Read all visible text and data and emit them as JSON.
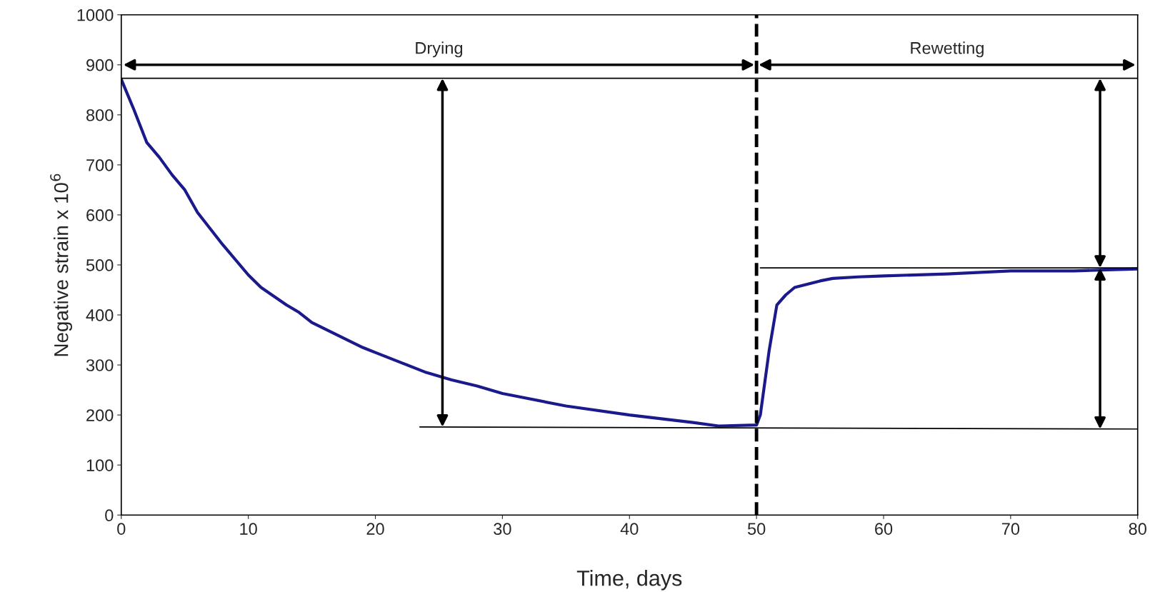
{
  "chart_data": {
    "type": "line",
    "xlabel": "Time, days",
    "ylabel": "Negative strain x 10$^{6}$",
    "xlim": [
      0,
      80
    ],
    "ylim": [
      0,
      1000
    ],
    "xticks": [
      0,
      10,
      20,
      30,
      40,
      50,
      60,
      70,
      80
    ],
    "yticks": [
      0,
      100,
      200,
      300,
      400,
      500,
      600,
      700,
      800,
      900,
      1000
    ],
    "grid": false,
    "legend": false,
    "marker": "none",
    "annotations": [
      "Drying",
      "Rewetting"
    ],
    "ref_lines": [
      {
        "axis": "x",
        "value": 50,
        "color": "#000000",
        "line_style": "dashed"
      },
      {
        "axis": "y",
        "value": 873,
        "color": "#000000",
        "line_style": "solid"
      }
    ],
    "series": [
      {
        "color": "#1a1a8c",
        "line_style": "solid",
        "x": [
          0,
          1,
          2,
          3,
          4,
          5,
          6,
          8,
          10,
          11,
          13,
          14,
          15,
          17,
          19,
          20,
          22,
          24,
          26,
          28,
          30,
          35,
          40,
          45,
          47,
          50,
          50.3,
          51,
          51.6,
          52.3,
          53,
          55,
          56,
          58,
          60,
          65,
          70,
          75,
          80
        ],
        "values": [
          871,
          810,
          745,
          715,
          680,
          650,
          605,
          540,
          480,
          455,
          420,
          405,
          385,
          360,
          335,
          325,
          305,
          285,
          270,
          258,
          243,
          218,
          200,
          185,
          178,
          180,
          200,
          330,
          420,
          440,
          455,
          468,
          473,
          476,
          478,
          482,
          488,
          488,
          492
        ]
      },
      {
        "color": "#000000",
        "line_style": "solid",
        "x": [
          23.5,
          80
        ],
        "values": [
          176,
          172
        ]
      },
      {
        "color": "#000000",
        "line_style": "solid",
        "x": [
          50.3,
          80
        ],
        "values": [
          494,
          494
        ]
      }
    ]
  }
}
